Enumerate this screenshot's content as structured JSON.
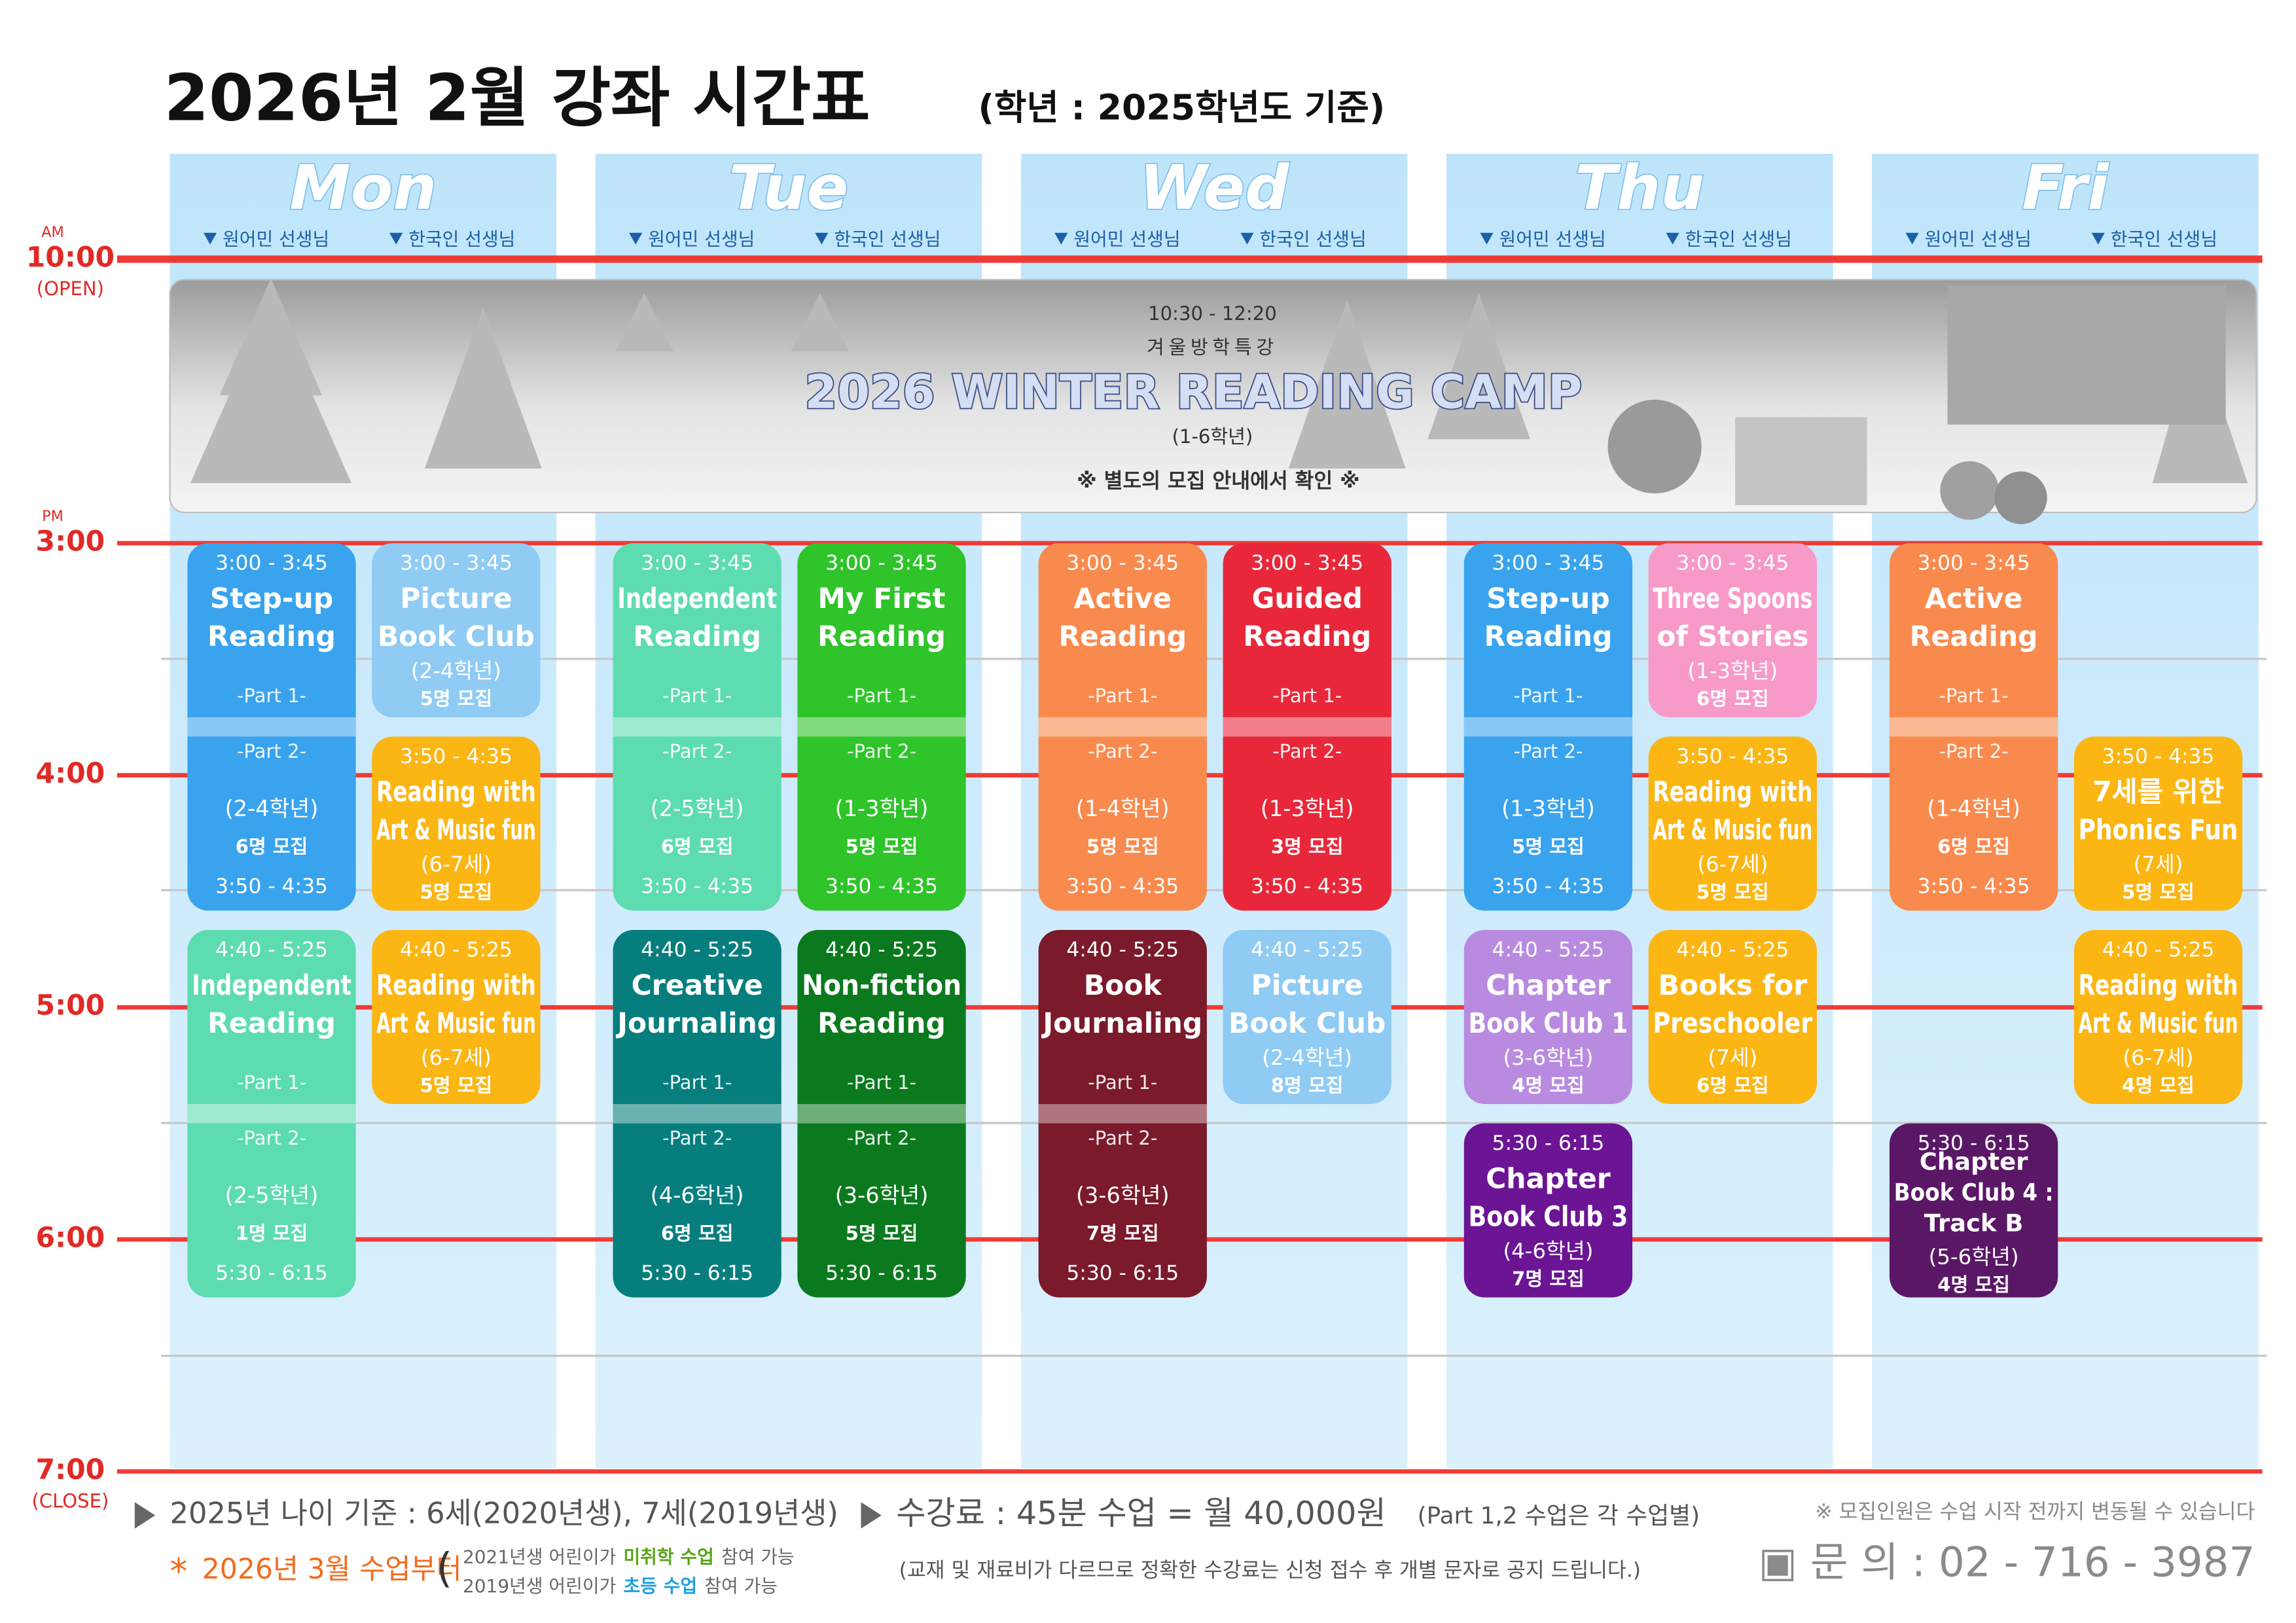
{
  "header": {
    "title": "2026년  2월  강좌 시간표",
    "subtitle": "(학년 : 2025학년도 기준)"
  },
  "time_labels": [
    {
      "label": "10:00",
      "period": "AM",
      "note": "(OPEN)"
    },
    {
      "label": "3:00",
      "period": "PM"
    },
    {
      "label": "4:00"
    },
    {
      "label": "5:00"
    },
    {
      "label": "6:00"
    },
    {
      "label": "7:00",
      "note": "(CLOSE)"
    }
  ],
  "part_labels": [
    "-Part 1-",
    "-Part 2-"
  ],
  "camp": {
    "time": "10:30 - 12:20",
    "subtitle": "겨울방학특강",
    "title": "2026 WINTER READING CAMP",
    "grades": "(1-6학년)",
    "note": "※ 별도의 모집 안내에서 확인 ※"
  },
  "days": [
    {
      "name": "Mon",
      "columns": [
        {
          "teacher": "원어민 선생님",
          "classes": [
            {
              "times": [
                "3:00 - 3:45",
                "3:50 - 4:35"
              ],
              "title": [
                "Step-up",
                "Reading"
              ],
              "grade": "(2-4학년)",
              "capacity": "6명 모집",
              "color": "#3aa3ee"
            },
            {
              "times": [
                "4:40 - 5:25",
                "5:30 - 6:15"
              ],
              "title": [
                "Independent",
                "Reading"
              ],
              "grade": "(2-5학년)",
              "capacity": "1명 모집",
              "color": "#5ddcb0"
            }
          ]
        },
        {
          "teacher": "한국인 선생님",
          "classes": [
            {
              "times": [
                "3:00 - 3:45"
              ],
              "title": [
                "Picture",
                "Book Club"
              ],
              "grade": "(2-4학년)",
              "capacity": "5명 모집",
              "color": "#8fcbf3"
            },
            {
              "times": [
                "3:50 - 4:35"
              ],
              "title": [
                "Reading with",
                "Art & Music fun"
              ],
              "grade": "(6-7세)",
              "capacity": "5명 모집",
              "color": "#fbb614"
            },
            {
              "times": [
                "4:40 - 5:25"
              ],
              "title": [
                "Reading with",
                "Art & Music fun"
              ],
              "grade": "(6-7세)",
              "capacity": "5명 모집",
              "color": "#fbb614"
            }
          ]
        }
      ]
    },
    {
      "name": "Tue",
      "columns": [
        {
          "teacher": "원어민 선생님",
          "classes": [
            {
              "times": [
                "3:00 - 3:45",
                "3:50 - 4:35"
              ],
              "title": [
                "Independent",
                "Reading"
              ],
              "grade": "(2-5학년)",
              "capacity": "6명 모집",
              "color": "#5ddcb0"
            },
            {
              "times": [
                "4:40 - 5:25",
                "5:30 - 6:15"
              ],
              "title": [
                "Creative",
                "Journaling"
              ],
              "grade": "(4-6학년)",
              "capacity": "6명 모집",
              "color": "#077e7e"
            }
          ]
        },
        {
          "teacher": "한국인 선생님",
          "classes": [
            {
              "times": [
                "3:00 - 3:45",
                "3:50 - 4:35"
              ],
              "title": [
                "My First",
                "Reading"
              ],
              "grade": "(1-3학년)",
              "capacity": "5명 모집",
              "color": "#2fc42a"
            },
            {
              "times": [
                "4:40 - 5:25",
                "5:30 - 6:15"
              ],
              "title": [
                "Non-fiction",
                "Reading"
              ],
              "grade": "(3-6학년)",
              "capacity": "5명 모집",
              "color": "#0b7a1e"
            }
          ]
        }
      ]
    },
    {
      "name": "Wed",
      "columns": [
        {
          "teacher": "원어민 선생님",
          "classes": [
            {
              "times": [
                "3:00 - 3:45",
                "3:50 - 4:35"
              ],
              "title": [
                "Active",
                "Reading"
              ],
              "grade": "(1-4학년)",
              "capacity": "5명 모집",
              "color": "#f98a4e"
            },
            {
              "times": [
                "4:40 - 5:25",
                "5:30 - 6:15"
              ],
              "title": [
                "Book",
                "Journaling"
              ],
              "grade": "(3-6학년)",
              "capacity": "7명 모집",
              "color": "#7a1a2a"
            }
          ]
        },
        {
          "teacher": "한국인 선생님",
          "classes": [
            {
              "times": [
                "3:00 - 3:45",
                "3:50 - 4:35"
              ],
              "title": [
                "Guided",
                "Reading"
              ],
              "grade": "(1-3학년)",
              "capacity": "3명 모집",
              "color": "#e8283a"
            },
            {
              "times": [
                "4:40 - 5:25"
              ],
              "title": [
                "Picture",
                "Book Club"
              ],
              "grade": "(2-4학년)",
              "capacity": "8명 모집",
              "color": "#8fcbf3"
            }
          ]
        }
      ]
    },
    {
      "name": "Thu",
      "columns": [
        {
          "teacher": "원어민 선생님",
          "classes": [
            {
              "times": [
                "3:00 - 3:45",
                "3:50 - 4:35"
              ],
              "title": [
                "Step-up",
                "Reading"
              ],
              "grade": "(1-3학년)",
              "capacity": "5명 모집",
              "color": "#3aa3ee"
            },
            {
              "times": [
                "4:40 - 5:25"
              ],
              "title": [
                "Chapter",
                "Book Club 1"
              ],
              "grade": "(3-6학년)",
              "capacity": "4명 모집",
              "color": "#b88be0"
            },
            {
              "times": [
                "5:30 - 6:15"
              ],
              "title": [
                "Chapter",
                "Book Club 3"
              ],
              "grade": "(4-6학년)",
              "capacity": "7명 모집",
              "color": "#6b1494"
            }
          ]
        },
        {
          "teacher": "한국인 선생님",
          "classes": [
            {
              "times": [
                "3:00 - 3:45"
              ],
              "title": [
                "Three Spoons",
                "of Stories"
              ],
              "grade": "(1-3학년)",
              "capacity": "6명 모집",
              "color": "#f79ac8"
            },
            {
              "times": [
                "3:50 - 4:35"
              ],
              "title": [
                "Reading with",
                "Art & Music fun"
              ],
              "grade": "(6-7세)",
              "capacity": "5명 모집",
              "color": "#fbb614"
            },
            {
              "times": [
                "4:40 - 5:25"
              ],
              "title": [
                "Books for",
                "Preschooler"
              ],
              "grade": "(7세)",
              "capacity": "6명 모집",
              "color": "#fbb614"
            }
          ]
        }
      ]
    },
    {
      "name": "Fri",
      "columns": [
        {
          "teacher": "원어민 선생님",
          "classes": [
            {
              "times": [
                "3:00 - 3:45",
                "3:50 - 4:35"
              ],
              "title": [
                "Active",
                "Reading"
              ],
              "grade": "(1-4학년)",
              "capacity": "6명 모집",
              "color": "#f98a4e"
            },
            {
              "times": [
                "5:30 - 6:15"
              ],
              "title": [
                "Chapter",
                "Book Club 4 :",
                "Track B"
              ],
              "grade": "(5-6학년)",
              "capacity": "4명 모집",
              "color": "#5a1766"
            }
          ]
        },
        {
          "teacher": "한국인 선생님",
          "classes": [
            {
              "times": [
                "3:50 - 4:35"
              ],
              "title": [
                "7세를 위한",
                "Phonics Fun"
              ],
              "grade": "(7세)",
              "capacity": "5명 모집",
              "color": "#fbb614"
            },
            {
              "times": [
                "4:40 - 5:25"
              ],
              "title": [
                "Reading with",
                "Art & Music fun"
              ],
              "grade": "(6-7세)",
              "capacity": "4명 모집",
              "color": "#fbb614"
            }
          ]
        }
      ]
    }
  ],
  "footer": {
    "age_basis": "2025년 나이 기준 : 6세(2020년생), 7세(2019년생)",
    "notice": {
      "marker": "*",
      "text": "2026년 3월 수업부터",
      "bracket": "("
    },
    "notice_lines": [
      [
        "2021년생 어린이가",
        "미취학 수업",
        "참여 가능"
      ],
      [
        "2019년생 어린이가",
        "초등 수업",
        "참여 가능"
      ]
    ],
    "fee": "수강료 : 45분 수업 = 월 40,000원",
    "fee_note": "(Part 1,2 수업은 각 수업별)",
    "fee_detail": "(교재 및 재료비가 다르므로 정확한 수강료는 신청 접수 후 개별 문자로 공지 드립니다.)",
    "capacity_note": "※ 모집인원은 수업 시작 전까지 변동될 수 있습니다",
    "contact": "▣ 문 의 : 02 - 716 - 3987"
  }
}
